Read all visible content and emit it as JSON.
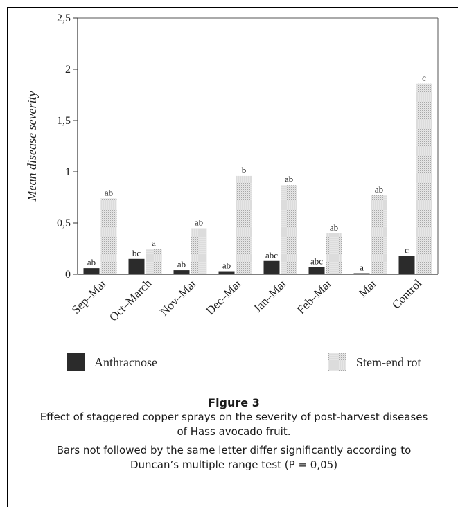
{
  "chart_data": {
    "type": "bar",
    "ylabel": "Mean disease severity",
    "xlabel": "",
    "ylim": [
      0,
      2.5
    ],
    "yticks": [
      "0",
      "0,5",
      "1",
      "1,5",
      "2",
      "2,5"
    ],
    "ytick_values": [
      0,
      0.5,
      1,
      1.5,
      2,
      2.5
    ],
    "categories": [
      "Sep–Mar",
      "Oct–March",
      "Nov–Mar",
      "Dec–Mar",
      "Jan–Mar",
      "Feb–Mar",
      "Mar",
      "Control"
    ],
    "series": [
      {
        "name": "Anthracnose",
        "values": [
          0.06,
          0.15,
          0.04,
          0.03,
          0.13,
          0.07,
          0.01,
          0.18
        ],
        "letters": [
          "ab",
          "bc",
          "ab",
          "ab",
          "abc",
          "abc",
          "a",
          "c"
        ],
        "color": "#2b2b2b"
      },
      {
        "name": "Stem-end rot",
        "values": [
          0.74,
          0.25,
          0.45,
          0.96,
          0.87,
          0.4,
          0.77,
          1.86
        ],
        "letters": [
          "ab",
          "a",
          "ab",
          "b",
          "ab",
          "ab",
          "ab",
          "c"
        ],
        "color": "#d9d9d9"
      }
    ],
    "grid": false,
    "legend_placement": "bottom"
  },
  "caption": {
    "title": "Figure 3",
    "line1": "Effect of staggered copper sprays on the severity of post-harvest diseases",
    "line2": "of Hass avocado fruit.",
    "note1": "Bars not followed by the same letter differ significantly according to",
    "note2": "Duncan’s multiple range test (P = 0,05)"
  }
}
